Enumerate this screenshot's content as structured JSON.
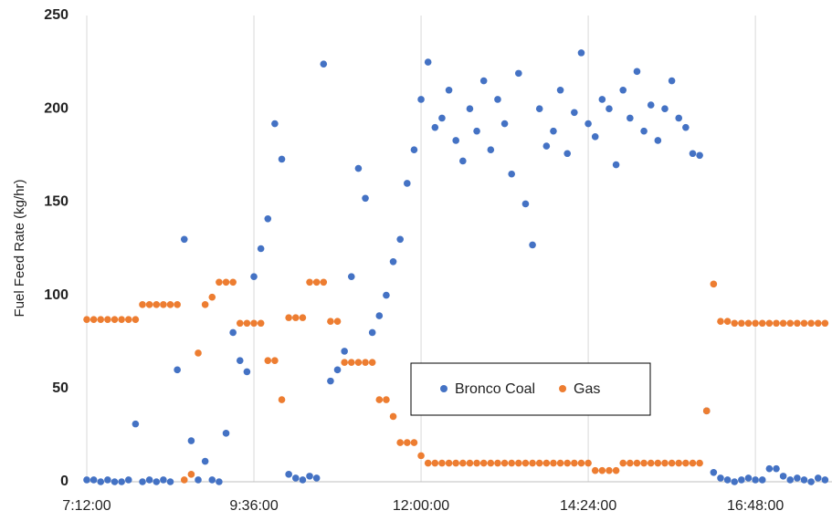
{
  "chart_data": {
    "type": "scatter",
    "y_label": "Fuel Feed Rate (kg/hr)",
    "x": [
      7.2,
      7.3,
      7.4,
      7.5,
      7.6,
      7.7,
      7.8,
      7.9,
      8.0,
      8.1,
      8.2,
      8.3,
      8.4,
      8.5,
      8.6,
      8.7,
      8.8,
      8.9,
      9.0,
      9.1,
      9.2,
      9.3,
      9.4,
      9.5,
      9.6,
      9.7,
      9.8,
      9.9,
      10.0,
      10.1,
      10.2,
      10.3,
      10.4,
      10.5,
      10.6,
      10.7,
      10.8,
      10.9,
      11.0,
      11.1,
      11.2,
      11.3,
      11.4,
      11.5,
      11.6,
      11.7,
      11.8,
      11.9,
      12.0,
      12.1,
      12.2,
      12.3,
      12.4,
      12.5,
      12.6,
      12.7,
      12.8,
      12.9,
      13.0,
      13.1,
      13.2,
      13.3,
      13.4,
      13.5,
      13.6,
      13.7,
      13.8,
      13.9,
      14.0,
      14.1,
      14.2,
      14.3,
      14.4,
      14.5,
      14.6,
      14.7,
      14.8,
      14.9,
      15.0,
      15.1,
      15.2,
      15.3,
      15.4,
      15.5,
      15.6,
      15.7,
      15.8,
      15.9,
      16.0,
      16.1,
      16.2,
      16.3,
      16.4,
      16.5,
      16.6,
      16.7,
      16.8,
      16.9,
      17.0,
      17.1,
      17.2,
      17.3,
      17.4,
      17.5,
      17.6,
      17.7,
      17.8
    ],
    "series": [
      {
        "name": "Bronco Coal",
        "color": "#4472c4",
        "values": [
          1,
          1,
          0,
          1,
          0,
          0,
          1,
          31,
          0,
          1,
          0,
          1,
          0,
          60,
          130,
          22,
          1,
          11,
          1,
          0,
          26,
          80,
          65,
          59,
          110,
          125,
          141,
          192,
          173,
          4,
          2,
          1,
          3,
          2,
          224,
          54,
          60,
          70,
          110,
          168,
          152,
          80,
          89,
          100,
          118,
          130,
          160,
          178,
          205,
          225,
          190,
          195,
          210,
          183,
          172,
          200,
          188,
          215,
          178,
          205,
          192,
          165,
          219,
          149,
          127,
          200,
          180,
          188,
          210,
          176,
          198,
          230,
          192,
          185,
          205,
          200,
          170,
          210,
          195,
          220,
          188,
          202,
          183,
          200,
          215,
          195,
          190,
          176,
          175,
          38,
          5,
          2,
          1,
          0,
          1,
          2,
          1,
          1,
          7,
          7,
          3,
          1,
          2,
          1,
          0,
          2,
          1
        ]
      },
      {
        "name": "Gas",
        "color": "#ed7d31",
        "values": [
          87,
          87,
          87,
          87,
          87,
          87,
          87,
          87,
          95,
          95,
          95,
          95,
          95,
          95,
          1,
          4,
          69,
          95,
          99,
          107,
          107,
          107,
          85,
          85,
          85,
          85,
          65,
          65,
          44,
          88,
          88,
          88,
          107,
          107,
          107,
          86,
          86,
          64,
          64,
          64,
          64,
          64,
          44,
          44,
          35,
          21,
          21,
          21,
          14,
          10,
          10,
          10,
          10,
          10,
          10,
          10,
          10,
          10,
          10,
          10,
          10,
          10,
          10,
          10,
          10,
          10,
          10,
          10,
          10,
          10,
          10,
          10,
          10,
          6,
          6,
          6,
          6,
          10,
          10,
          10,
          10,
          10,
          10,
          10,
          10,
          10,
          10,
          10,
          10,
          38,
          106,
          86,
          86,
          85,
          85,
          85,
          85,
          85,
          85,
          85,
          85,
          85,
          85,
          85,
          85,
          85,
          85
        ]
      }
    ],
    "xlim": [
      7.2,
      17.9
    ],
    "xticks": [
      {
        "value": 7.2,
        "label": "7:12:00"
      },
      {
        "value": 9.6,
        "label": "9:36:00"
      },
      {
        "value": 12.0,
        "label": "12:00:00"
      },
      {
        "value": 14.4,
        "label": "14:24:00"
      },
      {
        "value": 16.8,
        "label": "16:48:00"
      }
    ],
    "ylim": [
      0,
      250
    ],
    "yticks": [
      0,
      50,
      100,
      150,
      200,
      250
    ],
    "grid": true,
    "legend_position": "center"
  }
}
